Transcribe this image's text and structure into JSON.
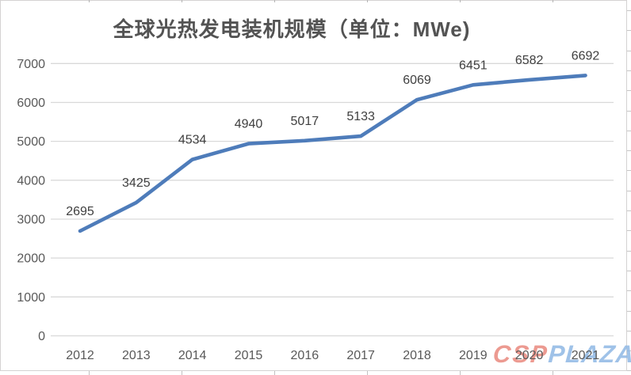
{
  "title": "全球光热发电装机规模（单位：MWe)",
  "chart_data": {
    "type": "line",
    "title": "全球光热发电装机规模（单位：MWe)",
    "categories": [
      "2012",
      "2013",
      "2014",
      "2015",
      "2016",
      "2017",
      "2018",
      "2019",
      "2020",
      "2021"
    ],
    "values": [
      2695,
      3425,
      4534,
      4940,
      5017,
      5133,
      6069,
      6451,
      6582,
      6692
    ],
    "data_labels": [
      "2695",
      "3425",
      "4534",
      "4940",
      "5017",
      "5133",
      "6069",
      "6451",
      "6582",
      "6692"
    ],
    "xlabel": "",
    "ylabel": "",
    "ylim": [
      0,
      7000
    ],
    "y_ticks": [
      0,
      1000,
      2000,
      3000,
      4000,
      5000,
      6000,
      7000
    ],
    "grid": true,
    "legend": false
  },
  "watermark": {
    "csp": "CSP",
    "plaza": "PLAZA"
  },
  "colors": {
    "line": "#4e7cba",
    "grid": "#d9d9d9",
    "axis_text": "#595959",
    "data_label": "#3f3f3f",
    "title_text": "#535353",
    "watermark_csp": "#e9897e",
    "watermark_plaza": "#8fb8e4"
  }
}
